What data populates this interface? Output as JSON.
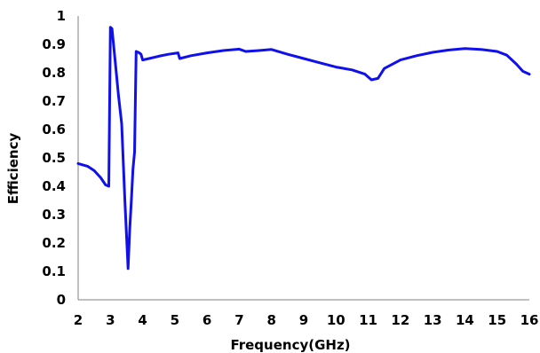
{
  "chart_data": {
    "type": "line",
    "xlabel": "Frequency(GHz)",
    "ylabel": "Efficiency",
    "xlim": [
      2,
      16
    ],
    "ylim": [
      0,
      1
    ],
    "x_ticks": [
      2,
      3,
      4,
      5,
      6,
      7,
      8,
      9,
      10,
      11,
      12,
      13,
      14,
      15,
      16
    ],
    "y_ticks": [
      0,
      0.1,
      0.2,
      0.3,
      0.4,
      0.5,
      0.6,
      0.7,
      0.8,
      0.9,
      1
    ],
    "y_tick_labels": [
      "0",
      "0.1",
      "0.2",
      "0.3",
      "0.4",
      "0.5",
      "0.6",
      "0.7",
      "0.8",
      "0.9",
      "1"
    ],
    "grid": false,
    "line_color": "#1010ee",
    "series": [
      {
        "points": [
          [
            2.0,
            0.48
          ],
          [
            2.3,
            0.47
          ],
          [
            2.5,
            0.455
          ],
          [
            2.7,
            0.43
          ],
          [
            2.85,
            0.405
          ],
          [
            2.95,
            0.4
          ],
          [
            3.0,
            0.96
          ],
          [
            3.05,
            0.955
          ],
          [
            3.15,
            0.84
          ],
          [
            3.25,
            0.72
          ],
          [
            3.35,
            0.62
          ],
          [
            3.45,
            0.35
          ],
          [
            3.55,
            0.11
          ],
          [
            3.6,
            0.25
          ],
          [
            3.65,
            0.35
          ],
          [
            3.7,
            0.46
          ],
          [
            3.75,
            0.52
          ],
          [
            3.8,
            0.875
          ],
          [
            3.9,
            0.87
          ],
          [
            3.95,
            0.865
          ],
          [
            4.0,
            0.845
          ],
          [
            4.2,
            0.85
          ],
          [
            4.5,
            0.858
          ],
          [
            4.8,
            0.865
          ],
          [
            5.1,
            0.87
          ],
          [
            5.15,
            0.85
          ],
          [
            5.5,
            0.86
          ],
          [
            6.0,
            0.87
          ],
          [
            6.5,
            0.878
          ],
          [
            7.0,
            0.883
          ],
          [
            7.2,
            0.875
          ],
          [
            7.6,
            0.878
          ],
          [
            8.0,
            0.882
          ],
          [
            8.5,
            0.865
          ],
          [
            9.0,
            0.85
          ],
          [
            9.5,
            0.835
          ],
          [
            10.0,
            0.82
          ],
          [
            10.5,
            0.81
          ],
          [
            10.9,
            0.795
          ],
          [
            11.1,
            0.775
          ],
          [
            11.3,
            0.78
          ],
          [
            11.5,
            0.815
          ],
          [
            12.0,
            0.845
          ],
          [
            12.5,
            0.86
          ],
          [
            13.0,
            0.872
          ],
          [
            13.5,
            0.88
          ],
          [
            14.0,
            0.885
          ],
          [
            14.5,
            0.882
          ],
          [
            15.0,
            0.875
          ],
          [
            15.3,
            0.862
          ],
          [
            15.6,
            0.83
          ],
          [
            15.8,
            0.805
          ],
          [
            16.0,
            0.795
          ]
        ]
      }
    ]
  }
}
